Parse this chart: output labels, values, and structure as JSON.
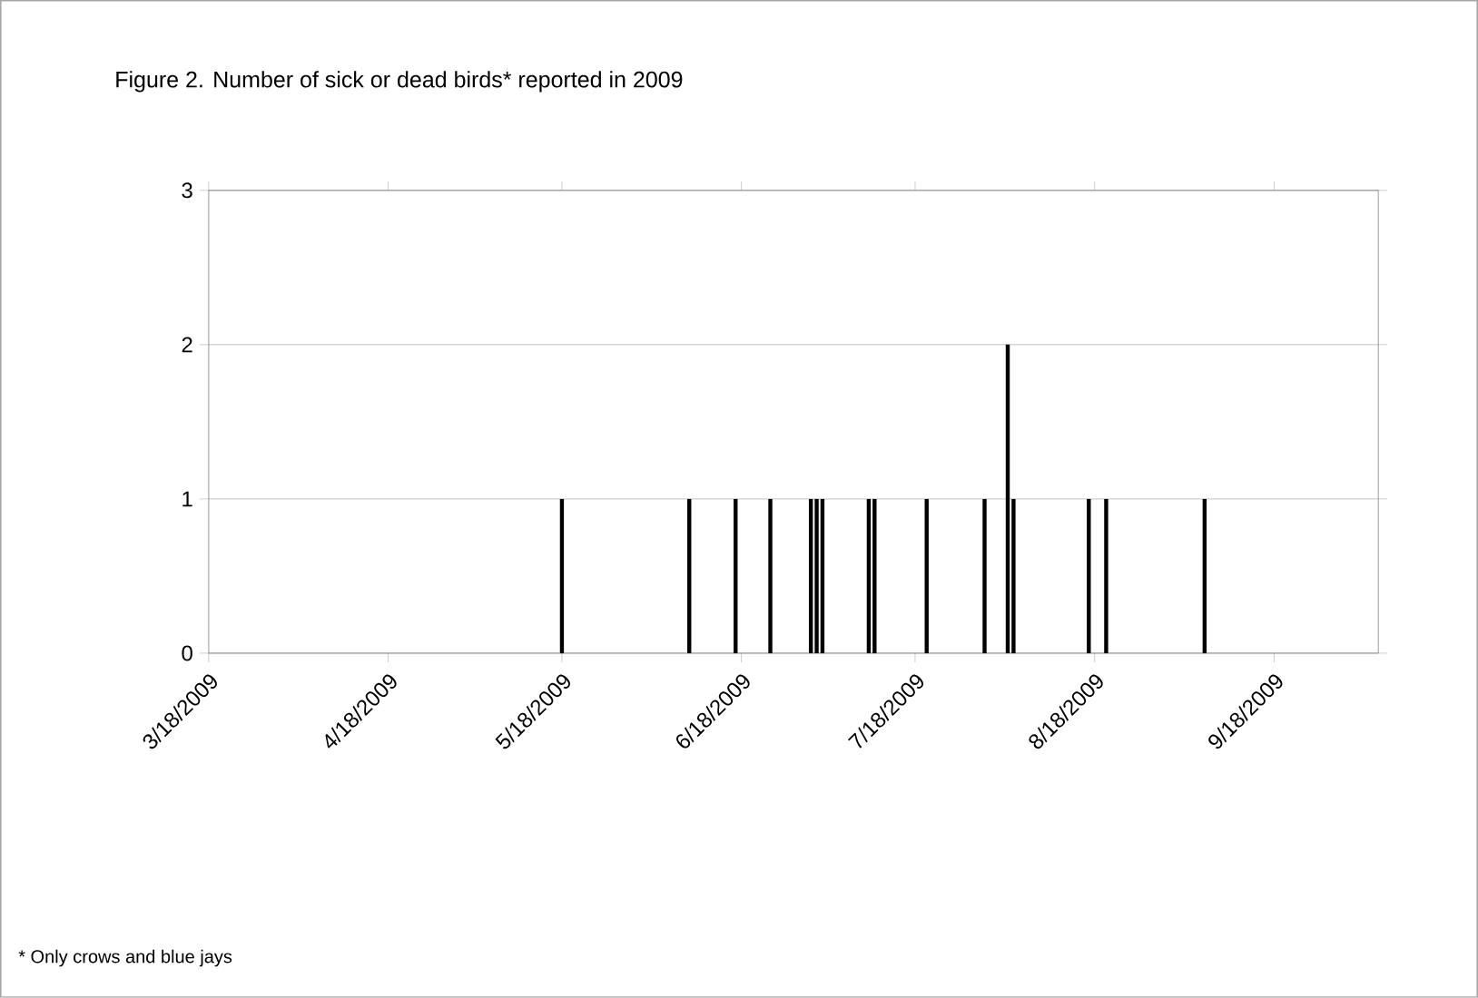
{
  "chart_data": {
    "type": "bar",
    "title": "Figure 2. Number of sick or dead birds* reported in 2009",
    "x": [
      "2009-05-18",
      "2009-06-09",
      "2009-06-17",
      "2009-06-23",
      "2009-06-30",
      "2009-07-01",
      "2009-07-02",
      "2009-07-10",
      "2009-07-11",
      "2009-07-20",
      "2009-07-30",
      "2009-08-03",
      "2009-08-04",
      "2009-08-17",
      "2009-08-20",
      "2009-09-06"
    ],
    "values": [
      1,
      1,
      1,
      1,
      1,
      1,
      1,
      1,
      1,
      1,
      1,
      2,
      1,
      1,
      1,
      1
    ],
    "color": "#000000",
    "xlim": [
      "2009-03-18",
      "2009-10-06"
    ],
    "xticks": [
      {
        "value": "2009-03-18",
        "label": "3/18/2009"
      },
      {
        "value": "2009-04-18",
        "label": "4/18/2009"
      },
      {
        "value": "2009-05-18",
        "label": "5/18/2009"
      },
      {
        "value": "2009-06-18",
        "label": "6/18/2009"
      },
      {
        "value": "2009-07-18",
        "label": "7/18/2009"
      },
      {
        "value": "2009-08-18",
        "label": "8/18/2009"
      },
      {
        "value": "2009-09-18",
        "label": "9/18/2009"
      }
    ],
    "ylim": [
      0,
      3
    ],
    "yticks": [
      0,
      1,
      2,
      3
    ],
    "grid": "y",
    "annotations": [
      "* Only crows and blue jays"
    ]
  }
}
